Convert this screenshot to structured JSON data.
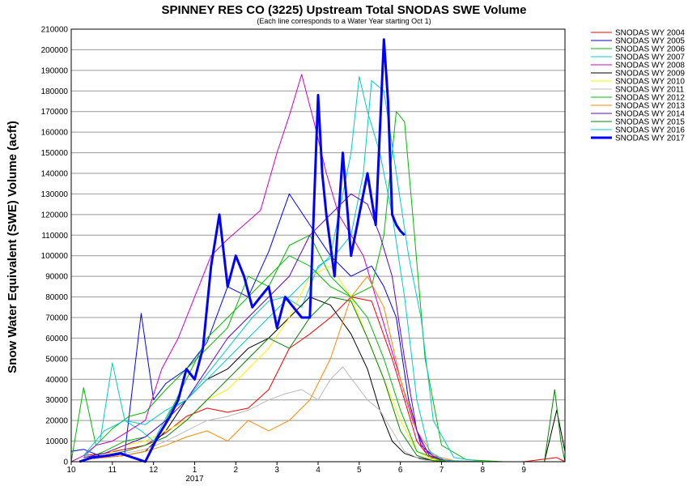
{
  "chart_data": {
    "type": "line",
    "title": "SPINNEY RES CO (3225) Upstream Total SNODAS SWE Volume",
    "subtitle": "(Each line corresponds to a Water Year starting Oct 1)",
    "ylabel": "Snow Water Equivalent (SWE) Volume (acft)",
    "xlabel": "",
    "ylim": [
      0,
      210000
    ],
    "y_ticks": [
      0,
      10000,
      20000,
      30000,
      40000,
      50000,
      60000,
      70000,
      80000,
      90000,
      100000,
      110000,
      120000,
      130000,
      140000,
      150000,
      160000,
      170000,
      180000,
      190000,
      200000,
      210000
    ],
    "y_tick_labels": [
      "0",
      "10000",
      "20000",
      "30000",
      "40000",
      "50000",
      "60000",
      "70000",
      "80000",
      "90000",
      "100000",
      "110000",
      "120000",
      "130000",
      "140000",
      "150000",
      "160000",
      "170000",
      "180000",
      "190000",
      "200000",
      "210000"
    ],
    "x_ticks": [
      {
        "month": 10,
        "label": "10"
      },
      {
        "month": 11,
        "label": "11"
      },
      {
        "month": 12,
        "label": "12"
      },
      {
        "month": 13,
        "label": "1",
        "sublabel": "2017"
      },
      {
        "month": 14,
        "label": "2"
      },
      {
        "month": 15,
        "label": "3"
      },
      {
        "month": 16,
        "label": "4"
      },
      {
        "month": 17,
        "label": "5"
      },
      {
        "month": 18,
        "label": "6"
      },
      {
        "month": 19,
        "label": "7"
      },
      {
        "month": 20,
        "label": "8"
      },
      {
        "month": 21,
        "label": "9"
      }
    ],
    "xlim": [
      10,
      22
    ],
    "grid": true,
    "legend_position": "right",
    "series": [
      {
        "name": "SNODAS WY 2004",
        "color": "#ff0000",
        "width": 1,
        "x": [
          10.3,
          10.8,
          11.3,
          11.8,
          12.3,
          12.8,
          13.3,
          13.8,
          14.3,
          14.8,
          15.3,
          15.8,
          16.3,
          16.8,
          17.3,
          17.8,
          18.1,
          18.4,
          18.7,
          19.2,
          20.0,
          21.0,
          21.8,
          22.0
        ],
        "y": [
          3000,
          4000,
          6000,
          8000,
          14000,
          22000,
          26000,
          24000,
          26000,
          35000,
          55000,
          62000,
          70000,
          80000,
          78000,
          50000,
          30000,
          10000,
          2000,
          500,
          0,
          0,
          2000,
          0
        ]
      },
      {
        "name": "SNODAS WY 2005",
        "color": "#0000ff",
        "width": 1,
        "x": [
          10.0,
          10.3,
          10.8,
          11.3,
          11.7,
          12.0,
          12.3,
          12.8,
          13.3,
          13.8,
          14.3,
          14.8,
          15.3,
          15.8,
          16.3,
          16.8,
          17.3,
          17.6,
          17.9,
          18.2,
          18.5,
          18.9,
          19.5,
          20.5,
          21.5,
          22.0
        ],
        "y": [
          5000,
          6000,
          2000,
          4000,
          72000,
          30000,
          38000,
          45000,
          58000,
          85000,
          80000,
          102000,
          130000,
          115000,
          100000,
          90000,
          95000,
          85000,
          70000,
          30000,
          8000,
          1000,
          0,
          0,
          0,
          0
        ]
      },
      {
        "name": "SNODAS WY 2006",
        "color": "#00bb00",
        "width": 1,
        "x": [
          10.0,
          10.3,
          10.6,
          11.0,
          11.4,
          11.8,
          12.3,
          12.8,
          13.3,
          13.8,
          14.3,
          14.8,
          15.3,
          15.8,
          16.3,
          16.8,
          17.3,
          17.6,
          17.9,
          18.1,
          18.3,
          18.6,
          19.0,
          19.6,
          20.5,
          21.5,
          22.0
        ],
        "y": [
          0,
          36000,
          8000,
          16000,
          22000,
          24000,
          35000,
          45000,
          55000,
          65000,
          90000,
          85000,
          105000,
          110000,
          90000,
          80000,
          85000,
          110000,
          170000,
          165000,
          120000,
          50000,
          8000,
          1000,
          0,
          0,
          0
        ]
      },
      {
        "name": "SNODAS WY 2007",
        "color": "#00cccc",
        "width": 1,
        "x": [
          10.3,
          10.7,
          11.0,
          11.3,
          11.7,
          12.0,
          12.4,
          12.8,
          13.2,
          13.6,
          14.0,
          14.4,
          14.8,
          15.2,
          15.6,
          16.0,
          16.4,
          16.8,
          17.1,
          17.3,
          17.6,
          17.9,
          18.2,
          18.5,
          18.8,
          19.3,
          20.0,
          21.0,
          22.0
        ],
        "y": [
          2000,
          10000,
          48000,
          20000,
          15000,
          10000,
          25000,
          30000,
          40000,
          50000,
          60000,
          70000,
          78000,
          80000,
          75000,
          95000,
          100000,
          110000,
          140000,
          185000,
          180000,
          140000,
          100000,
          70000,
          20000,
          2000,
          0,
          0,
          0
        ]
      },
      {
        "name": "SNODAS WY 2008",
        "color": "#cc00cc",
        "width": 1,
        "x": [
          10.0,
          10.3,
          10.6,
          11.0,
          11.4,
          11.8,
          12.2,
          12.6,
          13.0,
          13.4,
          13.8,
          14.2,
          14.6,
          15.0,
          15.3,
          15.6,
          15.9,
          16.2,
          16.5,
          16.8,
          17.1,
          17.4,
          17.7,
          18.0,
          18.3,
          18.6,
          19.0,
          19.5,
          20.5,
          21.5,
          22.0
        ],
        "y": [
          0,
          3000,
          8000,
          10000,
          15000,
          20000,
          45000,
          60000,
          80000,
          100000,
          108000,
          115000,
          122000,
          150000,
          168000,
          188000,
          165000,
          140000,
          120000,
          110000,
          100000,
          80000,
          60000,
          40000,
          20000,
          5000,
          1000,
          0,
          0,
          0,
          0
        ]
      },
      {
        "name": "SNODAS WY 2009",
        "color": "#000000",
        "width": 1,
        "x": [
          10.3,
          10.8,
          11.3,
          11.8,
          12.3,
          12.8,
          13.3,
          13.8,
          14.3,
          14.8,
          15.3,
          15.8,
          16.3,
          16.8,
          17.2,
          17.5,
          17.8,
          18.1,
          18.4,
          18.8,
          19.5,
          20.5,
          21.5,
          21.8,
          22.0
        ],
        "y": [
          1000,
          2000,
          3000,
          5000,
          15000,
          30000,
          40000,
          45000,
          55000,
          60000,
          70000,
          80000,
          76000,
          62000,
          45000,
          25000,
          10000,
          4000,
          2000,
          500,
          0,
          0,
          0,
          25000,
          5000
        ]
      },
      {
        "name": "SNODAS WY 2010",
        "color": "#ffee00",
        "width": 1,
        "x": [
          10.3,
          10.8,
          11.3,
          11.8,
          12.3,
          12.8,
          13.3,
          13.8,
          14.3,
          14.8,
          15.3,
          15.8,
          16.3,
          16.8,
          17.2,
          17.6,
          18.0,
          18.4,
          18.8,
          19.4,
          20.5,
          22.0
        ],
        "y": [
          2000,
          3000,
          8000,
          10000,
          15000,
          20000,
          30000,
          35000,
          45000,
          55000,
          70000,
          90000,
          95000,
          80000,
          60000,
          40000,
          20000,
          5000,
          1000,
          0,
          0,
          0
        ]
      },
      {
        "name": "SNODAS WY 2011",
        "color": "#bbbbbb",
        "width": 1,
        "x": [
          10.3,
          10.8,
          11.3,
          11.8,
          12.3,
          12.8,
          13.3,
          13.8,
          14.3,
          14.8,
          15.2,
          15.6,
          16.0,
          16.3,
          16.6,
          16.9,
          17.2,
          17.5,
          17.8,
          18.1,
          18.5,
          19.0,
          20.0,
          22.0
        ],
        "y": [
          1000,
          2000,
          4000,
          6000,
          10000,
          15000,
          20000,
          22000,
          25000,
          30000,
          33000,
          35000,
          30000,
          40000,
          46000,
          38000,
          30000,
          25000,
          15000,
          5000,
          1000,
          0,
          0,
          0
        ]
      },
      {
        "name": "SNODAS WY 2012",
        "color": "#00bb00",
        "width": 1,
        "x": [
          10.3,
          10.8,
          11.3,
          11.8,
          12.3,
          12.8,
          13.3,
          13.8,
          14.3,
          14.8,
          15.3,
          15.8,
          16.3,
          16.8,
          17.2,
          17.6,
          18.0,
          18.4,
          19.0,
          20.0,
          22.0
        ],
        "y": [
          1000,
          5000,
          10000,
          12000,
          20000,
          40000,
          60000,
          70000,
          80000,
          90000,
          100000,
          95000,
          85000,
          80000,
          70000,
          50000,
          25000,
          5000,
          500,
          0,
          0
        ]
      },
      {
        "name": "SNODAS WY 2013",
        "color": "#ff8800",
        "width": 1,
        "x": [
          10.3,
          10.8,
          11.3,
          11.8,
          12.3,
          12.8,
          13.3,
          13.8,
          14.3,
          14.8,
          15.3,
          15.8,
          16.3,
          16.8,
          17.2,
          17.6,
          18.0,
          18.4,
          18.8,
          19.3,
          20.0,
          22.0
        ],
        "y": [
          1000,
          2000,
          3000,
          5000,
          8000,
          12000,
          15000,
          10000,
          20000,
          15000,
          20000,
          30000,
          50000,
          80000,
          90000,
          75000,
          40000,
          15000,
          3000,
          500,
          0,
          0
        ]
      },
      {
        "name": "SNODAS WY 2014",
        "color": "#6600cc",
        "width": 1,
        "x": [
          10.3,
          10.8,
          11.3,
          11.8,
          12.3,
          12.8,
          13.3,
          13.8,
          14.3,
          14.8,
          15.3,
          15.8,
          16.3,
          16.8,
          17.2,
          17.5,
          17.8,
          18.1,
          18.4,
          18.7,
          19.1,
          19.8,
          21.0,
          22.0
        ],
        "y": [
          2000,
          4000,
          8000,
          12000,
          20000,
          30000,
          45000,
          60000,
          70000,
          80000,
          90000,
          110000,
          120000,
          130000,
          125000,
          110000,
          90000,
          50000,
          15000,
          3000,
          500,
          0,
          0,
          0
        ]
      },
      {
        "name": "SNODAS WY 2015",
        "color": "#008800",
        "width": 1,
        "x": [
          10.3,
          10.8,
          11.3,
          11.8,
          12.3,
          12.8,
          13.3,
          13.8,
          14.3,
          14.8,
          15.3,
          15.8,
          16.3,
          16.8,
          17.2,
          17.6,
          18.0,
          18.4,
          18.8,
          19.5,
          20.5,
          21.5,
          21.75,
          21.9,
          22.0
        ],
        "y": [
          1000,
          3000,
          5000,
          8000,
          12000,
          20000,
          30000,
          40000,
          50000,
          60000,
          55000,
          70000,
          80000,
          78000,
          60000,
          40000,
          15000,
          3000,
          500,
          0,
          0,
          0,
          35000,
          10000,
          0
        ]
      },
      {
        "name": "SNODAS WY 2016",
        "color": "#00cccc",
        "width": 1,
        "x": [
          10.3,
          10.8,
          11.3,
          11.8,
          12.3,
          12.8,
          13.3,
          13.8,
          14.3,
          14.8,
          15.3,
          15.8,
          16.3,
          16.8,
          17.0,
          17.2,
          17.5,
          17.8,
          18.1,
          18.4,
          18.7,
          19.1,
          19.8,
          21.0,
          22.0
        ],
        "y": [
          3000,
          15000,
          20000,
          18000,
          25000,
          30000,
          40000,
          50000,
          60000,
          70000,
          80000,
          90000,
          100000,
          150000,
          187000,
          170000,
          150000,
          120000,
          80000,
          30000,
          5000,
          500,
          0,
          0,
          0
        ]
      },
      {
        "name": "SNODAS WY 2017",
        "color": "#0000ff",
        "width": 3,
        "x": [
          10.2,
          10.5,
          10.9,
          11.2,
          11.5,
          11.8,
          12.1,
          12.4,
          12.6,
          12.8,
          13.0,
          13.2,
          13.4,
          13.6,
          13.8,
          14.0,
          14.2,
          14.4,
          14.6,
          14.8,
          15.0,
          15.2,
          15.4,
          15.6,
          15.8,
          16.0,
          16.1,
          16.2,
          16.4,
          16.6,
          16.8,
          17.0,
          17.2,
          17.4,
          17.6,
          17.7,
          17.8,
          17.9,
          18.0,
          18.1
        ],
        "y": [
          0,
          2000,
          3000,
          4000,
          2000,
          0,
          12000,
          22000,
          30000,
          45000,
          40000,
          55000,
          95000,
          120000,
          85000,
          100000,
          90000,
          75000,
          80000,
          85000,
          65000,
          80000,
          75000,
          70000,
          70000,
          178000,
          140000,
          120000,
          90000,
          150000,
          100000,
          120000,
          140000,
          115000,
          205000,
          175000,
          120000,
          115000,
          112000,
          110000
        ]
      }
    ]
  }
}
